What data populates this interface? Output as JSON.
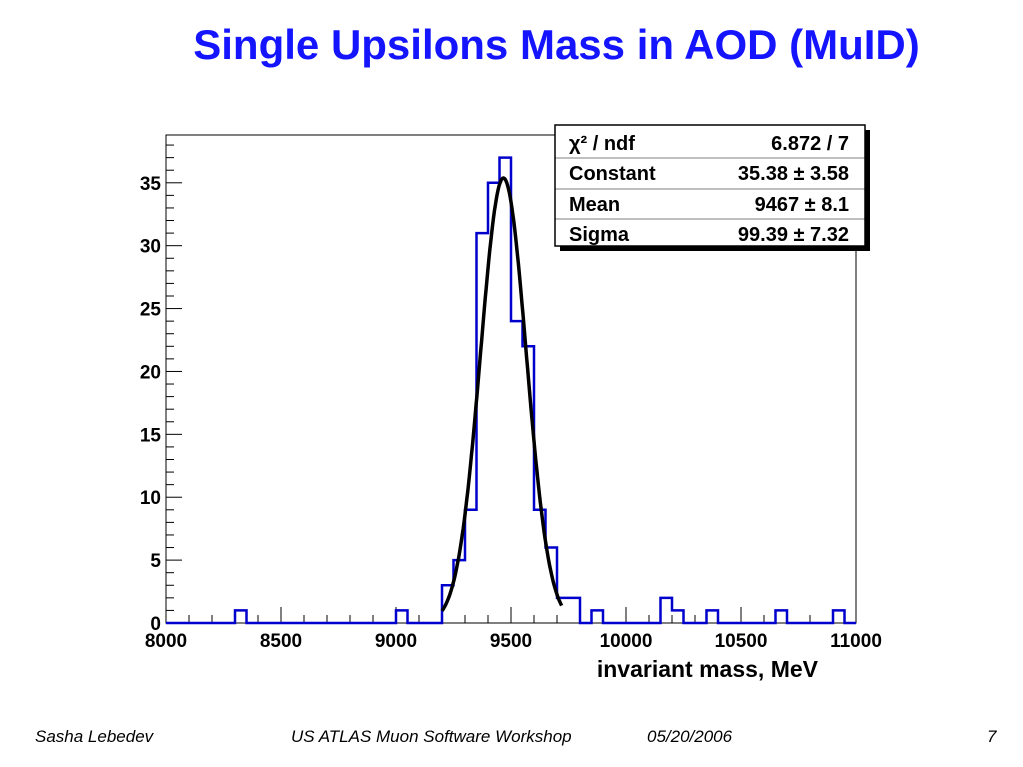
{
  "slide": {
    "title": "Single Upsilons Mass in AOD (MuID)",
    "footer": {
      "author": "Sasha Lebedev",
      "event": "US ATLAS Muon Software Workshop",
      "date": "05/20/2006",
      "page": "7"
    }
  },
  "colors": {
    "title": "#1414ff",
    "histogram": "#0000cc",
    "fit": "#000000"
  },
  "chart_data": {
    "type": "bar",
    "xlabel": "invariant mass, MeV",
    "xlim": [
      8000,
      11000
    ],
    "ylim": [
      0,
      38.8
    ],
    "x_ticks": [
      "8000",
      "8500",
      "9000",
      "9500",
      "10000",
      "10500",
      "11000"
    ],
    "y_ticks": [
      "0",
      "5",
      "10",
      "15",
      "20",
      "25",
      "30",
      "35"
    ],
    "bin_width": 50,
    "bins": [
      {
        "x": 8300,
        "value": 1
      },
      {
        "x": 9000,
        "value": 1
      },
      {
        "x": 9200,
        "value": 3
      },
      {
        "x": 9250,
        "value": 5
      },
      {
        "x": 9300,
        "value": 9
      },
      {
        "x": 9350,
        "value": 31
      },
      {
        "x": 9400,
        "value": 35
      },
      {
        "x": 9450,
        "value": 37
      },
      {
        "x": 9500,
        "value": 24
      },
      {
        "x": 9550,
        "value": 22
      },
      {
        "x": 9600,
        "value": 9
      },
      {
        "x": 9650,
        "value": 6
      },
      {
        "x": 9700,
        "value": 2
      },
      {
        "x": 9750,
        "value": 2
      },
      {
        "x": 9850,
        "value": 1
      },
      {
        "x": 10150,
        "value": 2
      },
      {
        "x": 10200,
        "value": 1
      },
      {
        "x": 10350,
        "value": 1
      },
      {
        "x": 10650,
        "value": 1
      },
      {
        "x": 10900,
        "value": 1
      }
    ],
    "fit": {
      "function": "gaus",
      "constant": 35.38,
      "mean": 9467,
      "sigma": 99.39,
      "range": [
        9200,
        9720
      ]
    },
    "stats_box": {
      "placement": "top-right",
      "rows": [
        {
          "label": "χ² / ndf",
          "value": "6.872 / 7"
        },
        {
          "label": "Constant",
          "value": "35.38 ± 3.58"
        },
        {
          "label": "Mean",
          "value": "9467 ± 8.1"
        },
        {
          "label": "Sigma",
          "value": "99.39 ± 7.32"
        }
      ]
    }
  }
}
